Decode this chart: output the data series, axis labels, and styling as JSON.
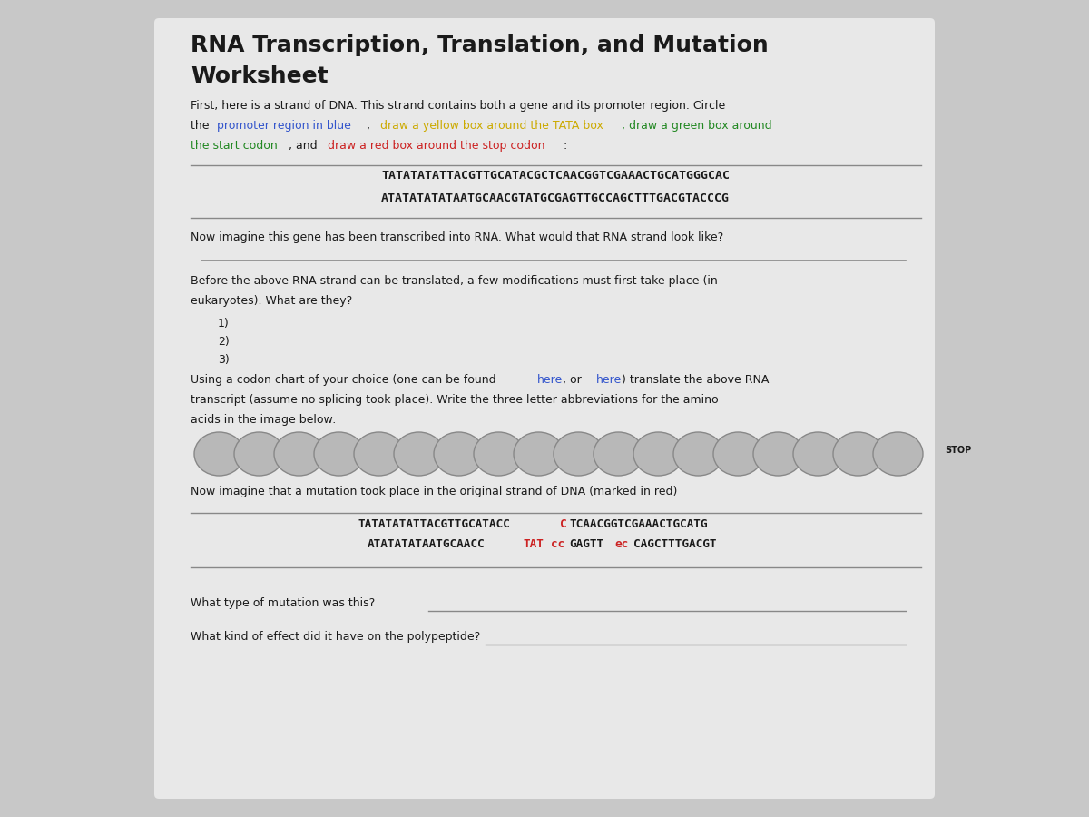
{
  "title_line1": "RNA Transcription, Translation, and Mutation",
  "title_line2": "Worksheet",
  "title_fontsize": 18,
  "bg_color": "#c8c8c8",
  "panel_color": "#e8e8e8",
  "text_color": "#1a1a1a",
  "dna_line1": "TATATATATTACGTTGCATACGCTCAACGGTCGAAACTGCATGGGCAC",
  "dna_line2": "ATATATATATAATGCAACGTATGCGAGTTGCCAGCTTTGACGTACCCG",
  "rna_question": "Now imagine this gene has been transcribed into RNA. What would that RNA strand look like?",
  "before_rna_text_l1": "Before the above RNA strand can be translated, a few modifications must first take place (in",
  "before_rna_text_l2": "eukaryotes). What are they?",
  "numbered_items": [
    "1)",
    "2)",
    "3)"
  ],
  "codon_line2": "transcript (assume no splicing took place). Write the three letter abbreviations for the amino",
  "codon_line3": "acids in the image below:",
  "num_ellipses": 18,
  "stop_label": "STOP",
  "mutation_text": "Now imagine that a mutation took place in the original strand of DNA (marked in red)",
  "mutation_q1": "What type of mutation was this?",
  "mutation_q2": "What kind of effect did it have on the polypeptide?",
  "ellipse_color": "#b8b8b8",
  "ellipse_edge_color": "#888888",
  "blue": "#3355cc",
  "yellow": "#ccaa00",
  "green": "#228822",
  "red": "#cc2222",
  "black": "#1a1a1a",
  "gray": "#888888"
}
